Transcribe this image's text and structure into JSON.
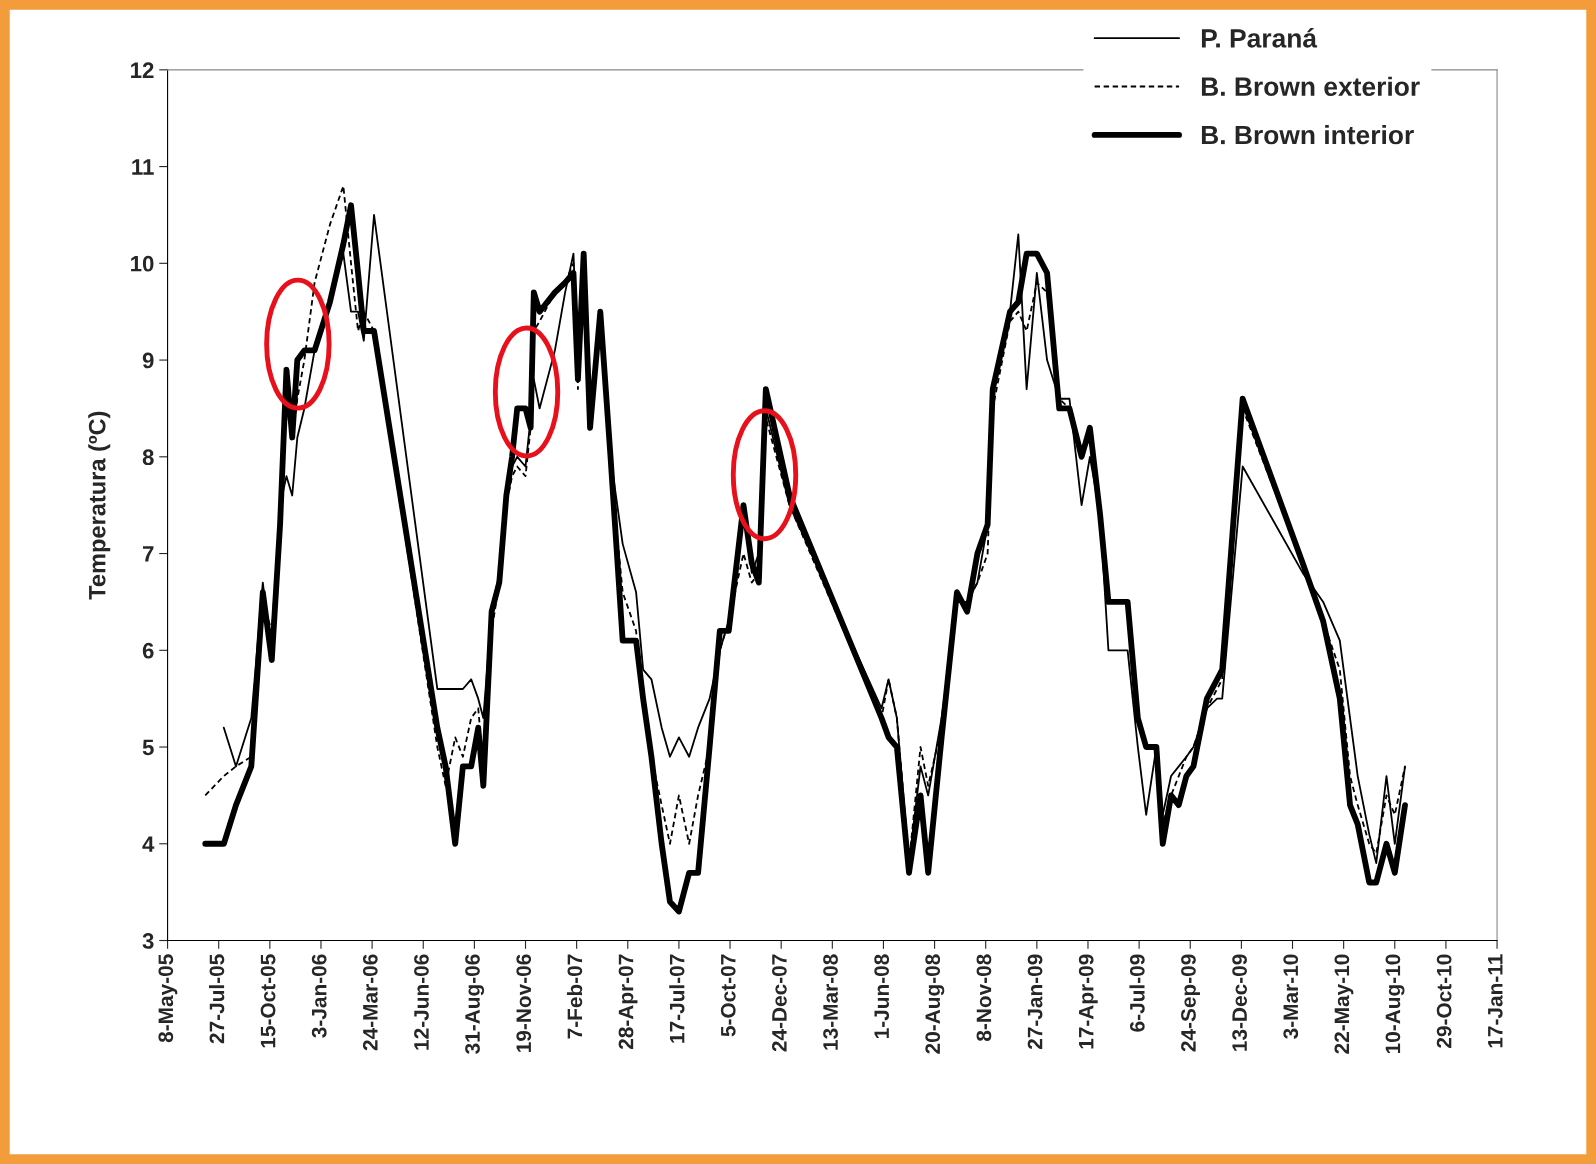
{
  "chart_data": {
    "type": "line",
    "ylabel": "Temperatura (ºC)",
    "x": [
      "2005-07-06",
      "2005-08-04",
      "2005-08-23",
      "2005-09-16",
      "2005-10-04",
      "2005-10-18",
      "2005-10-31",
      "2005-11-10",
      "2005-11-19",
      "2005-11-27",
      "2005-12-08",
      "2005-12-24",
      "2006-01-17",
      "2006-02-07",
      "2006-02-19",
      "2006-03-02",
      "2006-03-11",
      "2006-03-27",
      "2006-07-04",
      "2006-07-17",
      "2006-08-01",
      "2006-08-13",
      "2006-08-26",
      "2006-09-06",
      "2006-09-14",
      "2006-09-27",
      "2006-10-09",
      "2006-10-20",
      "2006-10-29",
      "2006-11-06",
      "2006-11-19",
      "2006-11-27",
      "2006-12-02",
      "2006-12-11",
      "2007-01-04",
      "2007-01-20",
      "2007-02-02",
      "2007-02-09",
      "2007-02-18",
      "2007-02-28",
      "2007-03-16",
      "2007-04-01",
      "2007-04-20",
      "2007-05-11",
      "2007-05-22",
      "2007-06-04",
      "2007-06-20",
      "2007-07-03",
      "2007-07-17",
      "2007-08-02",
      "2007-08-16",
      "2007-09-03",
      "2007-09-19",
      "2007-10-03",
      "2007-10-26",
      "2007-11-08",
      "2007-11-19",
      "2007-11-30",
      "2008-01-06",
      "2008-05-29",
      "2008-06-09",
      "2008-06-22",
      "2008-07-11",
      "2008-07-29",
      "2008-08-10",
      "2008-08-31",
      "2008-09-24",
      "2008-10-10",
      "2008-10-26",
      "2008-11-11",
      "2008-11-19",
      "2008-12-16",
      "2008-12-29",
      "2009-01-11",
      "2009-01-27",
      "2009-02-12",
      "2009-03-03",
      "2009-03-19",
      "2009-04-07",
      "2009-04-20",
      "2009-05-06",
      "2009-05-19",
      "2009-06-18",
      "2009-07-04",
      "2009-07-17",
      "2009-08-02",
      "2009-08-12",
      "2009-08-25",
      "2009-09-06",
      "2009-09-18",
      "2009-09-29",
      "2009-10-20",
      "2009-11-05",
      "2009-11-13",
      "2009-12-15",
      "2010-03-19",
      "2010-04-20",
      "2010-05-16",
      "2010-06-01",
      "2010-06-13",
      "2010-07-01",
      "2010-07-12",
      "2010-07-28",
      "2010-08-10",
      "2010-08-26"
    ],
    "series": [
      {
        "name": "P. Paraná",
        "color": "#000000",
        "line_style": "solid",
        "values": [
          null,
          5.2,
          4.8,
          5.3,
          6.7,
          5.9,
          7.5,
          7.8,
          7.6,
          8.2,
          8.5,
          9.1,
          9.6,
          10.1,
          9.5,
          9.5,
          9.2,
          10.5,
          5.6,
          5.6,
          5.6,
          5.6,
          5.7,
          5.5,
          5.3,
          6.4,
          6.8,
          7.5,
          7.9,
          8.0,
          7.9,
          8.4,
          8.8,
          8.5,
          9.1,
          9.7,
          10.1,
          9.0,
          10.1,
          8.3,
          9.5,
          8.0,
          7.1,
          6.6,
          5.8,
          5.7,
          5.2,
          4.9,
          5.1,
          4.9,
          5.2,
          5.5,
          6.0,
          6.3,
          7.5,
          6.8,
          7.0,
          8.5,
          7.5,
          5.4,
          5.7,
          5.3,
          3.8,
          4.8,
          4.5,
          5.3,
          6.5,
          6.5,
          6.7,
          7.3,
          8.7,
          9.5,
          10.3,
          8.7,
          9.9,
          9.0,
          8.6,
          8.6,
          7.5,
          8.0,
          7.4,
          6.0,
          6.0,
          5.0,
          4.3,
          5.0,
          4.3,
          4.7,
          4.8,
          4.9,
          5.0,
          5.4,
          5.5,
          5.5,
          7.9,
          6.8,
          6.5,
          6.1,
          5.3,
          4.7,
          4.1,
          3.8,
          4.7,
          4.0,
          4.8
        ]
      },
      {
        "name": "B. Brown exterior",
        "color": "#000000",
        "line_style": "dashed",
        "values": [
          4.5,
          4.7,
          4.8,
          4.9,
          6.5,
          6.2,
          7.4,
          8.5,
          8.2,
          8.6,
          9.0,
          9.8,
          10.4,
          10.8,
          10.0,
          9.3,
          9.5,
          9.3,
          5.0,
          4.6,
          5.1,
          4.9,
          5.3,
          5.4,
          4.8,
          6.2,
          6.7,
          7.5,
          7.8,
          7.9,
          7.8,
          8.3,
          9.3,
          9.4,
          9.7,
          9.8,
          10.0,
          8.7,
          10.1,
          8.3,
          9.5,
          7.9,
          6.6,
          6.2,
          5.4,
          4.9,
          4.4,
          4.0,
          4.5,
          4.0,
          4.5,
          5.0,
          6.0,
          6.3,
          7.0,
          6.7,
          6.8,
          8.4,
          7.5,
          5.3,
          5.7,
          5.3,
          3.8,
          5.0,
          4.6,
          5.2,
          6.5,
          6.5,
          6.7,
          7.0,
          8.5,
          9.4,
          9.5,
          9.3,
          9.8,
          9.7,
          8.6,
          8.5,
          8.0,
          8.2,
          7.4,
          6.5,
          6.5,
          5.3,
          5.0,
          5.0,
          4.2,
          4.5,
          4.7,
          4.9,
          5.0,
          5.4,
          5.6,
          5.7,
          8.5,
          6.9,
          6.3,
          5.8,
          4.7,
          4.4,
          4.0,
          3.9,
          4.5,
          4.3,
          4.8
        ]
      },
      {
        "name": "B. Brown interior",
        "color": "#000000",
        "line_style": "solid",
        "values": [
          4.0,
          4.0,
          4.4,
          4.8,
          6.6,
          5.9,
          7.3,
          8.9,
          8.2,
          9.0,
          9.1,
          9.1,
          9.6,
          10.2,
          10.6,
          9.9,
          9.3,
          9.3,
          5.2,
          4.8,
          4.0,
          4.8,
          4.8,
          5.2,
          4.6,
          6.4,
          6.7,
          7.6,
          8.0,
          8.5,
          8.5,
          8.3,
          9.7,
          9.5,
          9.7,
          9.8,
          9.9,
          8.8,
          10.1,
          8.3,
          9.5,
          8.0,
          6.1,
          6.1,
          5.5,
          4.9,
          4.0,
          3.4,
          3.3,
          3.7,
          3.7,
          5.0,
          6.2,
          6.2,
          7.5,
          6.9,
          6.7,
          8.7,
          7.6,
          5.3,
          5.1,
          5.0,
          3.7,
          4.5,
          3.7,
          5.1,
          6.6,
          6.4,
          7.0,
          7.3,
          8.7,
          9.5,
          9.6,
          10.1,
          10.1,
          9.9,
          8.5,
          8.5,
          8.0,
          8.3,
          7.4,
          6.5,
          6.5,
          5.3,
          5.0,
          5.0,
          4.0,
          4.5,
          4.4,
          4.7,
          4.8,
          5.5,
          5.7,
          5.8,
          8.6,
          6.9,
          6.3,
          5.5,
          4.4,
          4.2,
          3.6,
          3.6,
          4.0,
          3.7,
          4.4
        ]
      }
    ],
    "xlim": [
      "2005-05-08",
      "2011-01-17"
    ],
    "xticks": [
      {
        "value": "2005-05-08",
        "label": "8-May-05"
      },
      {
        "value": "2005-07-27",
        "label": "27-Jul-05"
      },
      {
        "value": "2005-10-15",
        "label": "15-Oct-05"
      },
      {
        "value": "2006-01-03",
        "label": "3-Jan-06"
      },
      {
        "value": "2006-03-24",
        "label": "24-Mar-06"
      },
      {
        "value": "2006-06-12",
        "label": "12-Jun-06"
      },
      {
        "value": "2006-08-31",
        "label": "31-Aug-06"
      },
      {
        "value": "2006-11-19",
        "label": "19-Nov-06"
      },
      {
        "value": "2007-02-07",
        "label": "7-Feb-07"
      },
      {
        "value": "2007-04-28",
        "label": "28-Apr-07"
      },
      {
        "value": "2007-07-17",
        "label": "17-Jul-07"
      },
      {
        "value": "2007-10-05",
        "label": "5-Oct-07"
      },
      {
        "value": "2007-12-24",
        "label": "24-Dec-07"
      },
      {
        "value": "2008-03-13",
        "label": "13-Mar-08"
      },
      {
        "value": "2008-06-01",
        "label": "1-Jun-08"
      },
      {
        "value": "2008-08-20",
        "label": "20-Aug-08"
      },
      {
        "value": "2008-11-08",
        "label": "8-Nov-08"
      },
      {
        "value": "2009-01-27",
        "label": "27-Jan-09"
      },
      {
        "value": "2009-04-17",
        "label": "17-Apr-09"
      },
      {
        "value": "2009-07-06",
        "label": "6-Jul-09"
      },
      {
        "value": "2009-09-24",
        "label": "24-Sep-09"
      },
      {
        "value": "2009-12-13",
        "label": "13-Dec-09"
      },
      {
        "value": "2010-03-03",
        "label": "3-Mar-10"
      },
      {
        "value": "2010-05-22",
        "label": "22-May-10"
      },
      {
        "value": "2010-08-10",
        "label": "10-Aug-10"
      },
      {
        "value": "2010-10-29",
        "label": "29-Oct-10"
      },
      {
        "value": "2011-01-17",
        "label": "17-Jan-11"
      }
    ],
    "ylim": [
      3,
      12
    ],
    "yticks": [
      3,
      4,
      5,
      6,
      7,
      8,
      9,
      10,
      11,
      12
    ],
    "grid": false,
    "legend": "top right",
    "marker": "none"
  }
}
